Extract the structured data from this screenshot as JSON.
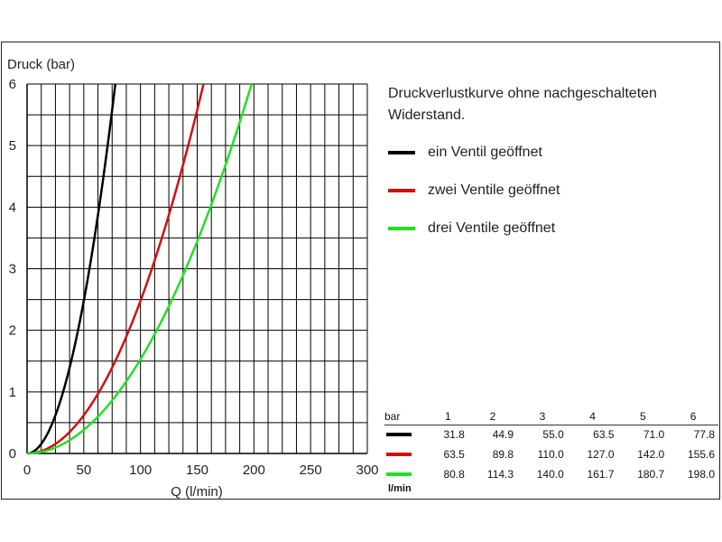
{
  "chart_data": {
    "type": "line",
    "title": "Druckverlustkurve ohne nachgeschalteten Widerstand.",
    "xlabel": "Q  (l/min)",
    "ylabel": "Druck  (bar)",
    "xlim": [
      0,
      300
    ],
    "ylim": [
      0,
      6
    ],
    "x_ticks": [
      "0",
      "50",
      "100",
      "150",
      "200",
      "250",
      "300"
    ],
    "y_ticks": [
      "0",
      "1",
      "2",
      "3",
      "4",
      "5",
      "6"
    ],
    "grid": true,
    "legend_position": "top-right",
    "series": [
      {
        "name": "ein Ventil geöffnet",
        "color": "#000000",
        "points": [
          [
            0,
            0
          ],
          [
            31.8,
            1
          ],
          [
            44.9,
            2
          ],
          [
            55.0,
            3
          ],
          [
            63.5,
            4
          ],
          [
            71.0,
            5
          ],
          [
            77.8,
            6
          ]
        ]
      },
      {
        "name": "zwei Ventile geöffnet",
        "color": "#d01010",
        "points": [
          [
            0,
            0
          ],
          [
            63.5,
            1
          ],
          [
            89.8,
            2
          ],
          [
            110.0,
            3
          ],
          [
            127.0,
            4
          ],
          [
            142.0,
            5
          ],
          [
            155.6,
            6
          ]
        ]
      },
      {
        "name": "drei Ventile geöffnet",
        "color": "#22e022",
        "points": [
          [
            0,
            0
          ],
          [
            80.8,
            1
          ],
          [
            114.3,
            2
          ],
          [
            140.0,
            3
          ],
          [
            161.7,
            4
          ],
          [
            180.7,
            5
          ],
          [
            198.0,
            6
          ]
        ]
      }
    ],
    "table": {
      "header_unit": "bar",
      "columns": [
        "1",
        "2",
        "3",
        "4",
        "5",
        "6"
      ],
      "rows": [
        [
          "31.8",
          "44.9",
          "55.0",
          "63.5",
          "71.0",
          "77.8"
        ],
        [
          "63.5",
          "89.8",
          "110.0",
          "127.0",
          "142.0",
          "155.6"
        ],
        [
          "80.8",
          "114.3",
          "140.0",
          "161.7",
          "180.7",
          "198.0"
        ]
      ],
      "row_unit": "l/min"
    }
  }
}
